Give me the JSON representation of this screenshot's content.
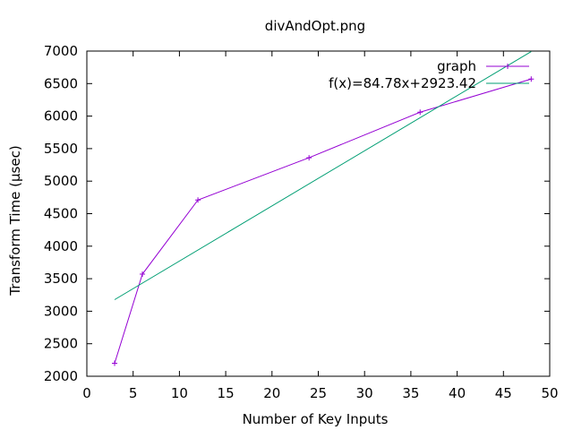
{
  "chart_data": {
    "type": "line",
    "title": "divAndOpt.png",
    "xlabel": "Number of Key Inputs",
    "ylabel": "Transform Time (µsec)",
    "xlim": [
      0,
      50
    ],
    "ylim": [
      2000,
      7000
    ],
    "xticks": [
      0,
      5,
      10,
      15,
      20,
      25,
      30,
      35,
      40,
      45,
      50
    ],
    "yticks": [
      2000,
      2500,
      3000,
      3500,
      4000,
      4500,
      5000,
      5500,
      6000,
      6500,
      7000
    ],
    "grid": false,
    "legend_position": "top-right",
    "series": [
      {
        "name": "graph",
        "color": "#9400d3",
        "marker": "plus",
        "x": [
          3,
          6,
          12,
          24,
          36,
          48
        ],
        "y": [
          2200,
          3570,
          4710,
          5360,
          6060,
          6570
        ]
      },
      {
        "name": "f(x)=84.78x+2923.42",
        "color": "#009e73",
        "marker": "none",
        "fit": {
          "slope": 84.78,
          "intercept": 2923.42
        },
        "x": [
          3,
          48
        ],
        "y": [
          3177.76,
          6992.86
        ]
      }
    ]
  }
}
